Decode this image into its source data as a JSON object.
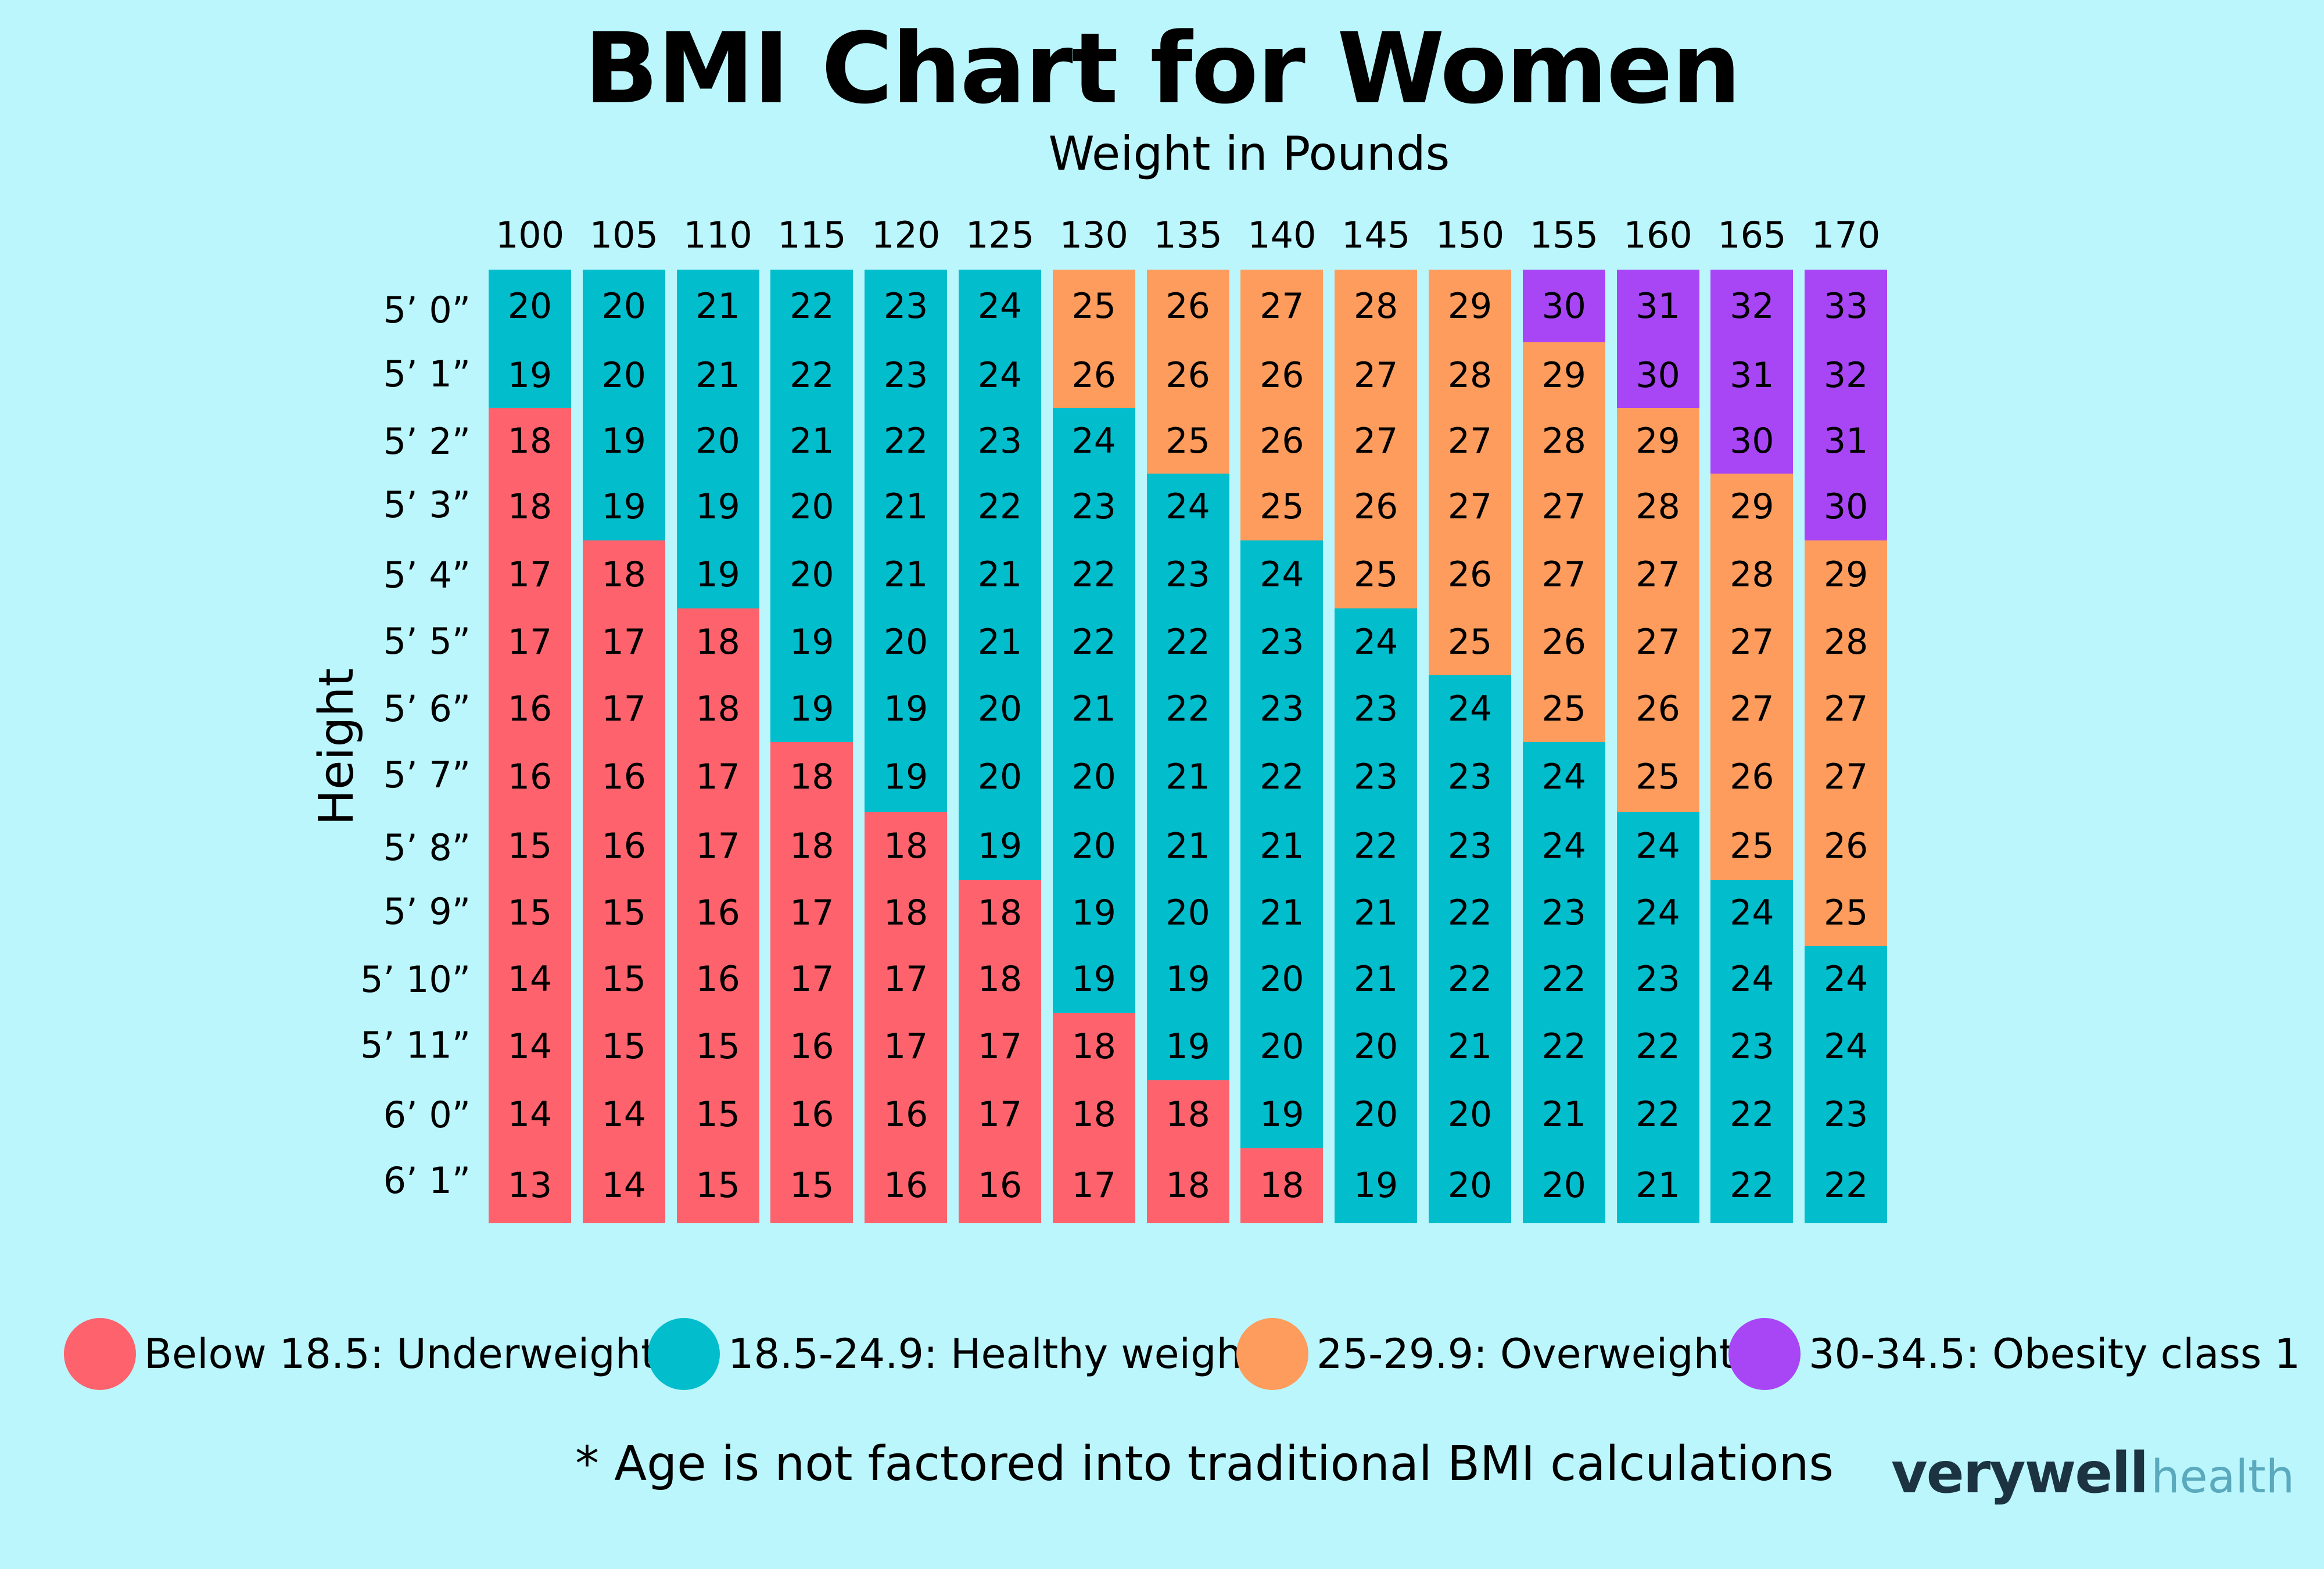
{
  "title": "BMI Chart for Women",
  "colors": {
    "background": "#bbf6fd",
    "underweight": "#fe636d",
    "healthy": "#02bdcc",
    "overweight": "#fd9c5c",
    "obese1": "#a846f6"
  },
  "legend": [
    {
      "label": "Below 18.5: Underweight",
      "color": "#fe636d"
    },
    {
      "label": "18.5-24.9: Healthy weight",
      "color": "#02bdcc"
    },
    {
      "label": "25-29.9: Overweight",
      "color": "#fd9c5c"
    },
    {
      "label": "30-34.5: Obesity class 1",
      "color": "#a846f6"
    }
  ],
  "footnote": "* Age is not factored into traditional BMI calculations",
  "logo": {
    "bold": "verywell",
    "light": "health"
  },
  "chart_data": {
    "type": "heatmap",
    "title": "BMI Chart for Women",
    "xlabel": "Weight in Pounds",
    "ylabel": "Height",
    "x": [
      "100",
      "105",
      "110",
      "115",
      "120",
      "125",
      "130",
      "135",
      "140",
      "145",
      "150",
      "155",
      "160",
      "165",
      "170"
    ],
    "y": [
      "5’ 0”",
      "5’ 1”",
      "5’ 2”",
      "5’ 3”",
      "5’ 4”",
      "5’ 5”",
      "5’ 6”",
      "5’ 7”",
      "5’ 8”",
      "5’ 9”",
      "5’ 10”",
      "5’ 11”",
      "6’ 0”",
      "6’ 1”"
    ],
    "values": [
      [
        20,
        20,
        21,
        22,
        23,
        24,
        25,
        26,
        27,
        28,
        29,
        30,
        31,
        32,
        33
      ],
      [
        19,
        20,
        21,
        22,
        23,
        24,
        26,
        26,
        26,
        27,
        28,
        29,
        30,
        31,
        32
      ],
      [
        18,
        19,
        20,
        21,
        22,
        23,
        24,
        25,
        26,
        27,
        27,
        28,
        29,
        30,
        31
      ],
      [
        18,
        19,
        19,
        20,
        21,
        22,
        23,
        24,
        25,
        26,
        27,
        27,
        28,
        29,
        30
      ],
      [
        17,
        18,
        19,
        20,
        21,
        21,
        22,
        23,
        24,
        25,
        26,
        27,
        27,
        28,
        29
      ],
      [
        17,
        17,
        18,
        19,
        20,
        21,
        22,
        22,
        23,
        24,
        25,
        26,
        27,
        27,
        28
      ],
      [
        16,
        17,
        18,
        19,
        19,
        20,
        21,
        22,
        23,
        23,
        24,
        25,
        26,
        27,
        27
      ],
      [
        16,
        16,
        17,
        18,
        19,
        20,
        20,
        21,
        22,
        23,
        23,
        24,
        25,
        26,
        27
      ],
      [
        15,
        16,
        17,
        18,
        18,
        19,
        20,
        21,
        21,
        22,
        23,
        24,
        24,
        25,
        26
      ],
      [
        15,
        15,
        16,
        17,
        18,
        18,
        19,
        20,
        21,
        21,
        22,
        23,
        24,
        24,
        25
      ],
      [
        14,
        15,
        16,
        17,
        17,
        18,
        19,
        19,
        20,
        21,
        22,
        22,
        23,
        24,
        24
      ],
      [
        14,
        15,
        15,
        16,
        17,
        17,
        18,
        19,
        20,
        20,
        21,
        22,
        22,
        23,
        24
      ],
      [
        14,
        14,
        15,
        16,
        16,
        17,
        18,
        18,
        19,
        20,
        20,
        21,
        22,
        22,
        23
      ],
      [
        13,
        14,
        15,
        15,
        16,
        16,
        17,
        18,
        18,
        19,
        20,
        20,
        21,
        22,
        22
      ]
    ],
    "categories_legend": [
      "Below 18.5: Underweight",
      "18.5-24.9: Healthy weight",
      "25-29.9: Overweight",
      "30-34.5: Obesity class 1"
    ],
    "category_colors": [
      "#fe636d",
      "#02bdcc",
      "#fd9c5c",
      "#a846f6"
    ],
    "cell_category": [
      [
        "H",
        "H",
        "H",
        "H",
        "H",
        "H",
        "O",
        "O",
        "O",
        "O",
        "O",
        "B",
        "B",
        "B",
        "B"
      ],
      [
        "H",
        "H",
        "H",
        "H",
        "H",
        "H",
        "O",
        "O",
        "O",
        "O",
        "O",
        "O",
        "B",
        "B",
        "B"
      ],
      [
        "U",
        "H",
        "H",
        "H",
        "H",
        "H",
        "H",
        "O",
        "O",
        "O",
        "O",
        "O",
        "O",
        "B",
        "B"
      ],
      [
        "U",
        "H",
        "H",
        "H",
        "H",
        "H",
        "H",
        "H",
        "O",
        "O",
        "O",
        "O",
        "O",
        "O",
        "B"
      ],
      [
        "U",
        "U",
        "H",
        "H",
        "H",
        "H",
        "H",
        "H",
        "H",
        "O",
        "O",
        "O",
        "O",
        "O",
        "O"
      ],
      [
        "U",
        "U",
        "U",
        "H",
        "H",
        "H",
        "H",
        "H",
        "H",
        "H",
        "O",
        "O",
        "O",
        "O",
        "O"
      ],
      [
        "U",
        "U",
        "U",
        "H",
        "H",
        "H",
        "H",
        "H",
        "H",
        "H",
        "H",
        "O",
        "O",
        "O",
        "O"
      ],
      [
        "U",
        "U",
        "U",
        "U",
        "H",
        "H",
        "H",
        "H",
        "H",
        "H",
        "H",
        "H",
        "O",
        "O",
        "O"
      ],
      [
        "U",
        "U",
        "U",
        "U",
        "U",
        "H",
        "H",
        "H",
        "H",
        "H",
        "H",
        "H",
        "H",
        "O",
        "O"
      ],
      [
        "U",
        "U",
        "U",
        "U",
        "U",
        "U",
        "H",
        "H",
        "H",
        "H",
        "H",
        "H",
        "H",
        "H",
        "O"
      ],
      [
        "U",
        "U",
        "U",
        "U",
        "U",
        "U",
        "H",
        "H",
        "H",
        "H",
        "H",
        "H",
        "H",
        "H",
        "H"
      ],
      [
        "U",
        "U",
        "U",
        "U",
        "U",
        "U",
        "U",
        "H",
        "H",
        "H",
        "H",
        "H",
        "H",
        "H",
        "H"
      ],
      [
        "U",
        "U",
        "U",
        "U",
        "U",
        "U",
        "U",
        "U",
        "H",
        "H",
        "H",
        "H",
        "H",
        "H",
        "H"
      ],
      [
        "U",
        "U",
        "U",
        "U",
        "U",
        "U",
        "U",
        "U",
        "U",
        "H",
        "H",
        "H",
        "H",
        "H",
        "H"
      ]
    ],
    "grid": false,
    "legend_position": "bottom"
  }
}
